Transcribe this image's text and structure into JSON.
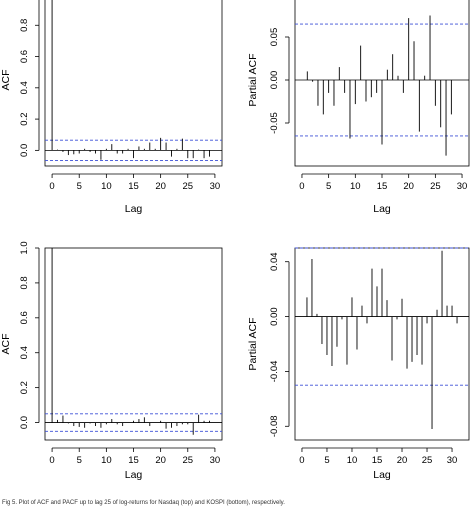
{
  "caption": "Fig 5. Plot of ACF and PACF up to lag 25 of log-returns for Nasdaq (top) and KOSPI (bottom), respectively.",
  "colors": {
    "bars": "#000000",
    "confidence": "#3b4fd6",
    "axis": "#000000"
  },
  "chart_data": [
    {
      "type": "bar",
      "panel": "top-left",
      "xlabel": "Lag",
      "ylabel": "ACF",
      "xlim": [
        0,
        30
      ],
      "ylim": [
        -0.1,
        1.0
      ],
      "xticks": [
        0,
        5,
        10,
        15,
        20,
        25,
        30
      ],
      "yticks": [
        0.0,
        0.2,
        0.4,
        0.6,
        0.8,
        1.0
      ],
      "yticklabels": [
        "0.0",
        "0.2",
        "0.4",
        "0.6",
        "0.8",
        "1.0"
      ],
      "confidence_bounds": [
        0.065,
        -0.065
      ],
      "zero_line": true,
      "x": [
        0,
        1,
        2,
        3,
        4,
        5,
        6,
        7,
        8,
        9,
        10,
        11,
        12,
        13,
        14,
        15,
        16,
        17,
        18,
        19,
        20,
        21,
        22,
        23,
        24,
        25,
        26,
        27,
        28,
        29
      ],
      "values": [
        1.0,
        0.005,
        -0.01,
        -0.03,
        -0.025,
        -0.02,
        0.01,
        -0.01,
        -0.02,
        -0.06,
        0.01,
        0.04,
        -0.02,
        -0.02,
        0.01,
        -0.05,
        0.025,
        0.01,
        0.05,
        0.01,
        0.08,
        0.05,
        -0.04,
        0.01,
        0.075,
        -0.05,
        -0.05,
        0.005,
        -0.05,
        -0.04
      ]
    },
    {
      "type": "bar",
      "panel": "top-right",
      "xlabel": "Lag",
      "ylabel": "Partial ACF",
      "xlim": [
        0,
        30
      ],
      "ylim": [
        -0.1,
        0.1
      ],
      "xticks": [
        0,
        5,
        10,
        15,
        20,
        25,
        30
      ],
      "yticks": [
        -0.05,
        0.0,
        0.05
      ],
      "yticklabels": [
        "-0.05",
        "0.00",
        "0.05"
      ],
      "confidence_bounds": [
        0.065,
        -0.065
      ],
      "zero_line": true,
      "x": [
        1,
        2,
        3,
        4,
        5,
        6,
        7,
        8,
        9,
        10,
        11,
        12,
        13,
        14,
        15,
        16,
        17,
        18,
        19,
        20,
        21,
        22,
        23,
        24,
        25,
        26,
        27,
        28,
        29
      ],
      "values": [
        0.01,
        -0.002,
        -0.03,
        -0.04,
        -0.015,
        -0.03,
        0.015,
        -0.015,
        -0.068,
        -0.028,
        0.04,
        -0.025,
        -0.02,
        -0.015,
        -0.075,
        0.012,
        0.03,
        0.005,
        -0.015,
        0.072,
        0.045,
        -0.06,
        0.005,
        0.075,
        -0.03,
        -0.055,
        -0.088,
        -0.04,
        0.0
      ]
    },
    {
      "type": "bar",
      "panel": "bottom-left",
      "xlabel": "Lag",
      "ylabel": "ACF",
      "xlim": [
        0,
        30
      ],
      "ylim": [
        -0.1,
        1.0
      ],
      "xticks": [
        0,
        5,
        10,
        15,
        20,
        25,
        30
      ],
      "yticks": [
        0.0,
        0.2,
        0.4,
        0.6,
        0.8,
        1.0
      ],
      "yticklabels": [
        "0.0",
        "0.2",
        "0.4",
        "0.6",
        "0.8",
        "1.0"
      ],
      "confidence_bounds": [
        0.05,
        -0.05
      ],
      "zero_line": true,
      "x": [
        0,
        1,
        2,
        3,
        4,
        5,
        6,
        7,
        8,
        9,
        10,
        11,
        12,
        13,
        14,
        15,
        16,
        17,
        18,
        19,
        20,
        21,
        22,
        23,
        24,
        25,
        26,
        27,
        28,
        29
      ],
      "values": [
        1.0,
        0.015,
        0.04,
        -0.005,
        -0.02,
        -0.025,
        -0.03,
        -0.005,
        -0.02,
        -0.03,
        -0.01,
        0.02,
        -0.01,
        -0.02,
        0.0,
        0.01,
        0.02,
        0.03,
        -0.02,
        0.0,
        0.01,
        -0.035,
        -0.03,
        -0.02,
        -0.01,
        -0.01,
        -0.07,
        0.045,
        0.01,
        0.01
      ]
    },
    {
      "type": "bar",
      "panel": "bottom-right",
      "xlabel": "Lag",
      "ylabel": "Partial ACF",
      "xlim": [
        0,
        32
      ],
      "ylim": [
        -0.09,
        0.05
      ],
      "xticks": [
        0,
        5,
        10,
        15,
        20,
        25,
        30
      ],
      "yticks": [
        -0.08,
        -0.04,
        0.0,
        0.04
      ],
      "yticklabels": [
        "-0.08",
        "-0.04",
        "0.00",
        "0.04"
      ],
      "confidence_bounds": [
        0.05,
        -0.05
      ],
      "zero_line": true,
      "x": [
        1,
        2,
        3,
        4,
        5,
        6,
        7,
        8,
        9,
        10,
        11,
        12,
        13,
        14,
        15,
        16,
        17,
        18,
        19,
        20,
        21,
        22,
        23,
        24,
        25,
        26,
        27,
        28,
        29,
        30,
        31
      ],
      "values": [
        0.014,
        0.042,
        0.002,
        -0.02,
        -0.028,
        -0.036,
        -0.022,
        -0.002,
        -0.035,
        0.014,
        -0.024,
        0.008,
        -0.005,
        0.035,
        0.022,
        0.035,
        0.012,
        -0.032,
        -0.002,
        0.013,
        -0.038,
        -0.033,
        -0.028,
        -0.035,
        -0.005,
        -0.082,
        0.005,
        0.048,
        0.008,
        0.008,
        -0.005
      ]
    }
  ]
}
